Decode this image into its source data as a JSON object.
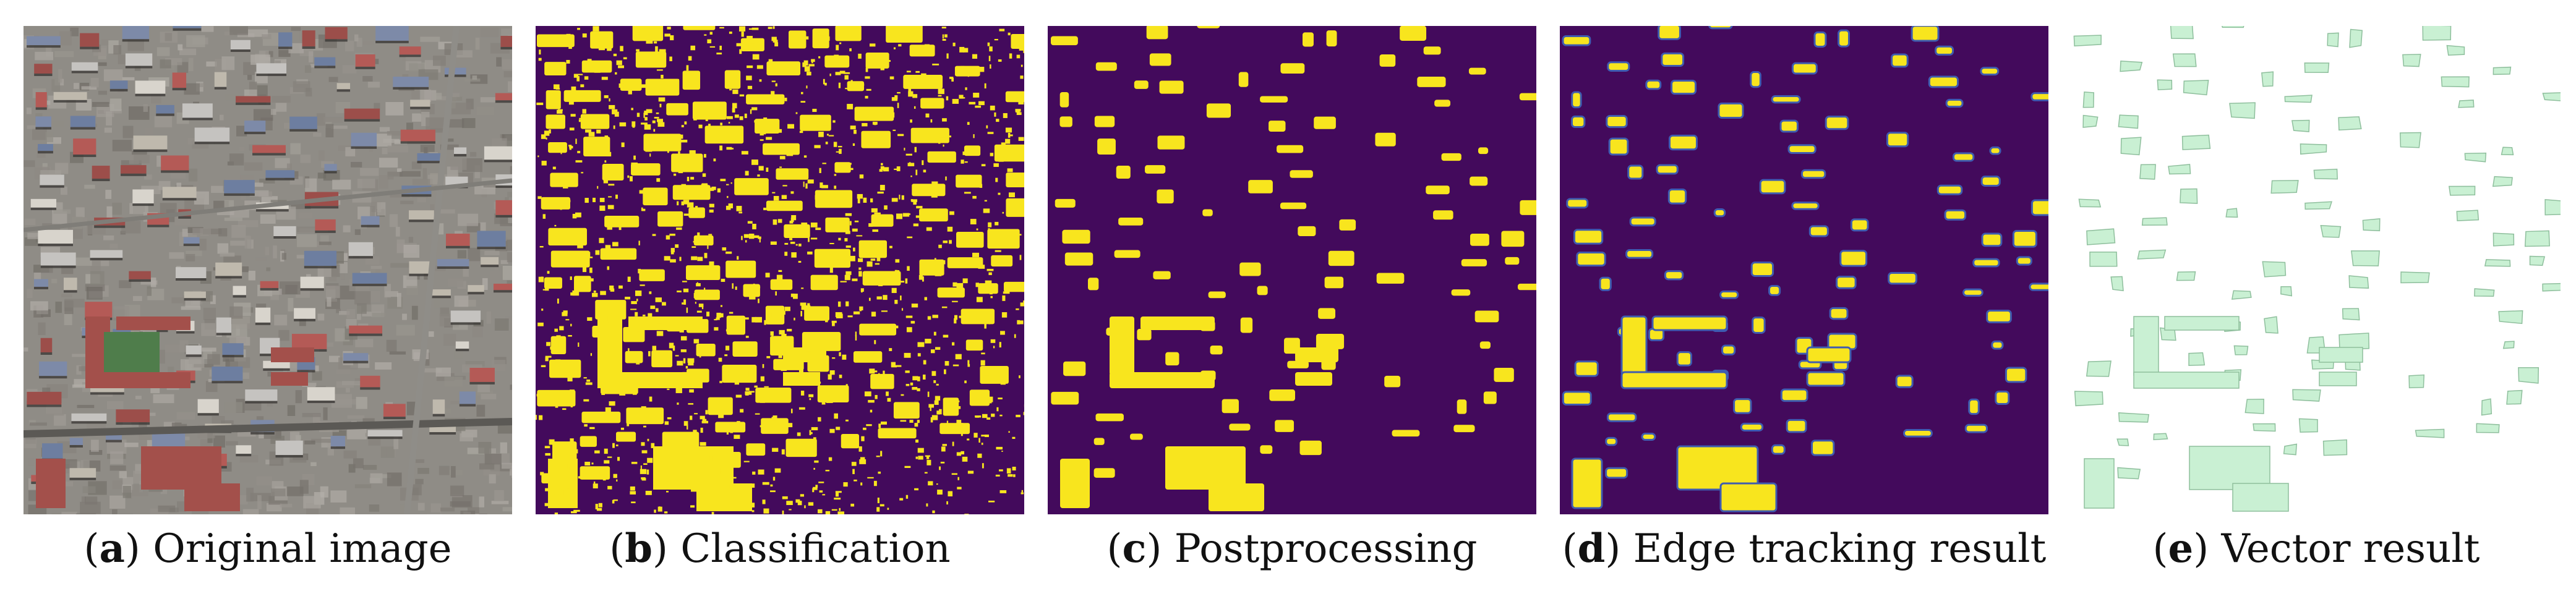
{
  "figure": {
    "panels": [
      {
        "id": "a",
        "letter": "a",
        "label": "Original image"
      },
      {
        "id": "b",
        "letter": "b",
        "label": "Classification"
      },
      {
        "id": "c",
        "letter": "c",
        "label": "Postprocessing"
      },
      {
        "id": "d",
        "letter": "d",
        "label": "Edge tracking result"
      },
      {
        "id": "e",
        "letter": "e",
        "label": "Vector result"
      }
    ]
  },
  "colors": {
    "background_mask": "#430a5c",
    "building_mask": "#f8e51e",
    "edge_tracking": "#3f5cb0",
    "vector_fill": "#c9f0d3",
    "vector_stroke": "#8fbf9d",
    "aerial_base": "#8f8c86"
  }
}
